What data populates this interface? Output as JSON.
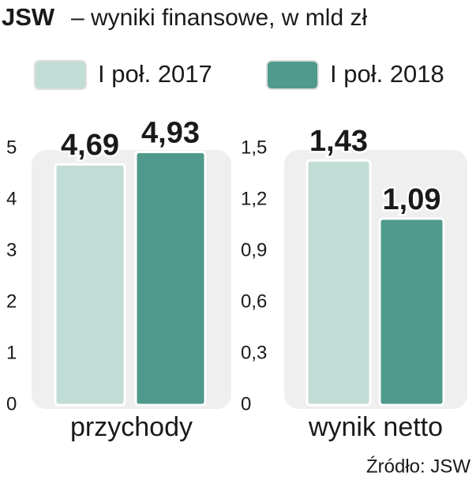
{
  "title_bold": "JSW",
  "title": "– wyniki finansowe, w mld zł",
  "source": "Źródło: JSW",
  "chart_data": [
    {
      "type": "bar",
      "categories": [
        "przychody"
      ],
      "series": [
        {
          "name": "I poł. 2017",
          "color": "#c2ddd6",
          "values": [
            4.69
          ],
          "value_labels": [
            "4,69"
          ]
        },
        {
          "name": "I poł. 2018",
          "color": "#4f9a8c",
          "values": [
            4.93
          ],
          "value_labels": [
            "4,93"
          ]
        }
      ],
      "ylim": [
        0,
        5
      ],
      "yticks": [
        0,
        1,
        2,
        3,
        4,
        5
      ],
      "grid": false
    },
    {
      "type": "bar",
      "categories": [
        "wynik netto"
      ],
      "series": [
        {
          "color": "#c2ddd6",
          "values": [
            1.43
          ],
          "value_labels": [
            "1,43"
          ]
        },
        {
          "color": "#4f9a8c",
          "values": [
            1.09
          ],
          "value_labels": [
            "1,09"
          ]
        }
      ],
      "ylim": [
        0,
        1.5
      ],
      "yticks": [
        0,
        {
          "value": 0.3,
          "label": "0,3"
        },
        {
          "value": 0.6,
          "label": "0,6"
        },
        {
          "value": 0.9,
          "label": "0,9"
        },
        {
          "value": 1.2,
          "label": "1,2"
        },
        {
          "value": 1.5,
          "label": "1,5"
        }
      ],
      "grid": false
    }
  ]
}
